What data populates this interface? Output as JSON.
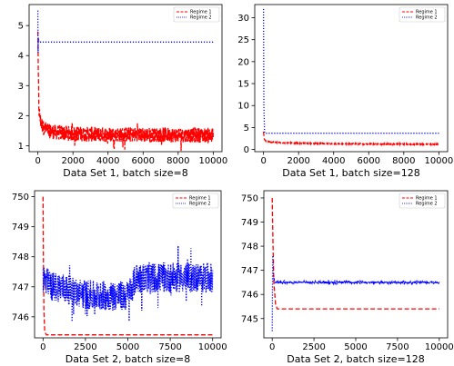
{
  "colors": {
    "regime1": "#ff0000",
    "regime2": "#0000ff",
    "axis": "#000000",
    "legend_border": "#cccccc"
  },
  "chart_data": [
    {
      "type": "line",
      "xlabel": "Data Set 1, batch size=8",
      "xlim": [
        -500,
        10500
      ],
      "ylim": [
        0.8,
        5.7
      ],
      "xticks": [
        0,
        2000,
        4000,
        6000,
        8000,
        10000
      ],
      "xtick_labels": [
        "0",
        "2000",
        "4000",
        "6000",
        "8000",
        "10000"
      ],
      "yticks": [
        1,
        2,
        3,
        4,
        5
      ],
      "ytick_labels": [
        "1",
        "2",
        "3",
        "4",
        "5"
      ],
      "legend": "top-right",
      "series": [
        {
          "name": "Regime 1",
          "style": "dashed",
          "x": [
            0,
            20,
            60,
            150,
            300,
            600,
            1000,
            1500,
            2000,
            3000,
            4000,
            5000,
            6000,
            7000,
            8000,
            9000,
            10000
          ],
          "y": [
            4.9,
            3.5,
            2.2,
            1.8,
            1.6,
            1.5,
            1.45,
            1.42,
            1.4,
            1.38,
            1.37,
            1.37,
            1.36,
            1.36,
            1.36,
            1.35,
            1.35
          ],
          "noise": 0.25
        },
        {
          "name": "Regime 2",
          "style": "dotted",
          "x": [
            0,
            10,
            30,
            60,
            10000
          ],
          "y": [
            5.5,
            4.1,
            4.6,
            4.45,
            4.45
          ],
          "noise": 0
        }
      ]
    },
    {
      "type": "line",
      "xlabel": "Data Set 1, batch size=128",
      "xlim": [
        -500,
        10500
      ],
      "ylim": [
        -0.5,
        33
      ],
      "xticks": [
        0,
        2000,
        4000,
        6000,
        8000,
        10000
      ],
      "xtick_labels": [
        "0",
        "2000",
        "4000",
        "6000",
        "8000",
        "10000"
      ],
      "yticks": [
        0,
        5,
        10,
        15,
        20,
        25,
        30
      ],
      "ytick_labels": [
        "0",
        "5",
        "10",
        "15",
        "20",
        "25",
        "30"
      ],
      "legend": "top-right",
      "series": [
        {
          "name": "Regime 1",
          "style": "dashed",
          "x": [
            0,
            50,
            150,
            400,
            1000,
            2000,
            4000,
            6000,
            8000,
            10000
          ],
          "y": [
            4.0,
            2.2,
            1.9,
            1.7,
            1.55,
            1.4,
            1.3,
            1.25,
            1.2,
            1.2
          ],
          "noise": 0.1
        },
        {
          "name": "Regime 2",
          "style": "dotted",
          "x": [
            0,
            20,
            60,
            150,
            10000
          ],
          "y": [
            32,
            10,
            3.8,
            3.7,
            3.7
          ],
          "noise": 0
        }
      ]
    },
    {
      "type": "line",
      "xlabel": "Data Set 2, batch size=8",
      "xlim": [
        -500,
        10500
      ],
      "ylim": [
        745.3,
        750.2
      ],
      "xticks": [
        0,
        2500,
        5000,
        7500,
        10000
      ],
      "xtick_labels": [
        "0",
        "2500",
        "5000",
        "7500",
        "10000"
      ],
      "yticks": [
        746,
        747,
        748,
        749,
        750
      ],
      "ytick_labels": [
        "746",
        "747",
        "748",
        "749",
        "750"
      ],
      "legend": "top-right",
      "series": [
        {
          "name": "Regime 1",
          "style": "dashed",
          "x": [
            0,
            20,
            50,
            100,
            200,
            10000
          ],
          "y": [
            750.0,
            748.0,
            746.2,
            745.5,
            745.4,
            745.4
          ],
          "noise": 0
        },
        {
          "name": "Regime 2",
          "style": "dotted",
          "x": [
            0,
            500,
            1000,
            2000,
            3000,
            4000,
            5000,
            5500,
            6000,
            7000,
            8000,
            9000,
            10000
          ],
          "y": [
            747.3,
            747.0,
            747.0,
            746.8,
            746.7,
            746.7,
            746.7,
            747.3,
            747.3,
            747.3,
            747.3,
            747.3,
            747.3
          ],
          "noise": 0.5
        }
      ]
    },
    {
      "type": "line",
      "xlabel": "Data Set 2, batch size=128",
      "xlim": [
        -500,
        10500
      ],
      "ylim": [
        744.2,
        750.3
      ],
      "xticks": [
        0,
        2500,
        5000,
        7500,
        10000
      ],
      "xtick_labels": [
        "0",
        "2500",
        "5000",
        "7500",
        "10000"
      ],
      "yticks": [
        745,
        746,
        747,
        748,
        749,
        750
      ],
      "ytick_labels": [
        "745",
        "746",
        "747",
        "748",
        "749",
        "750"
      ],
      "legend": "top-right",
      "series": [
        {
          "name": "Regime 1",
          "style": "dashed",
          "x": [
            0,
            50,
            100,
            200,
            300,
            10000
          ],
          "y": [
            750.0,
            748.0,
            746.5,
            745.6,
            745.4,
            745.4
          ],
          "noise": 0
        },
        {
          "name": "Regime 2",
          "style": "dotted",
          "x": [
            0,
            30,
            60,
            100,
            200,
            400,
            10000
          ],
          "y": [
            744.5,
            747.7,
            746.8,
            746.6,
            746.5,
            746.5,
            746.5
          ],
          "noise": 0.05
        }
      ]
    }
  ]
}
